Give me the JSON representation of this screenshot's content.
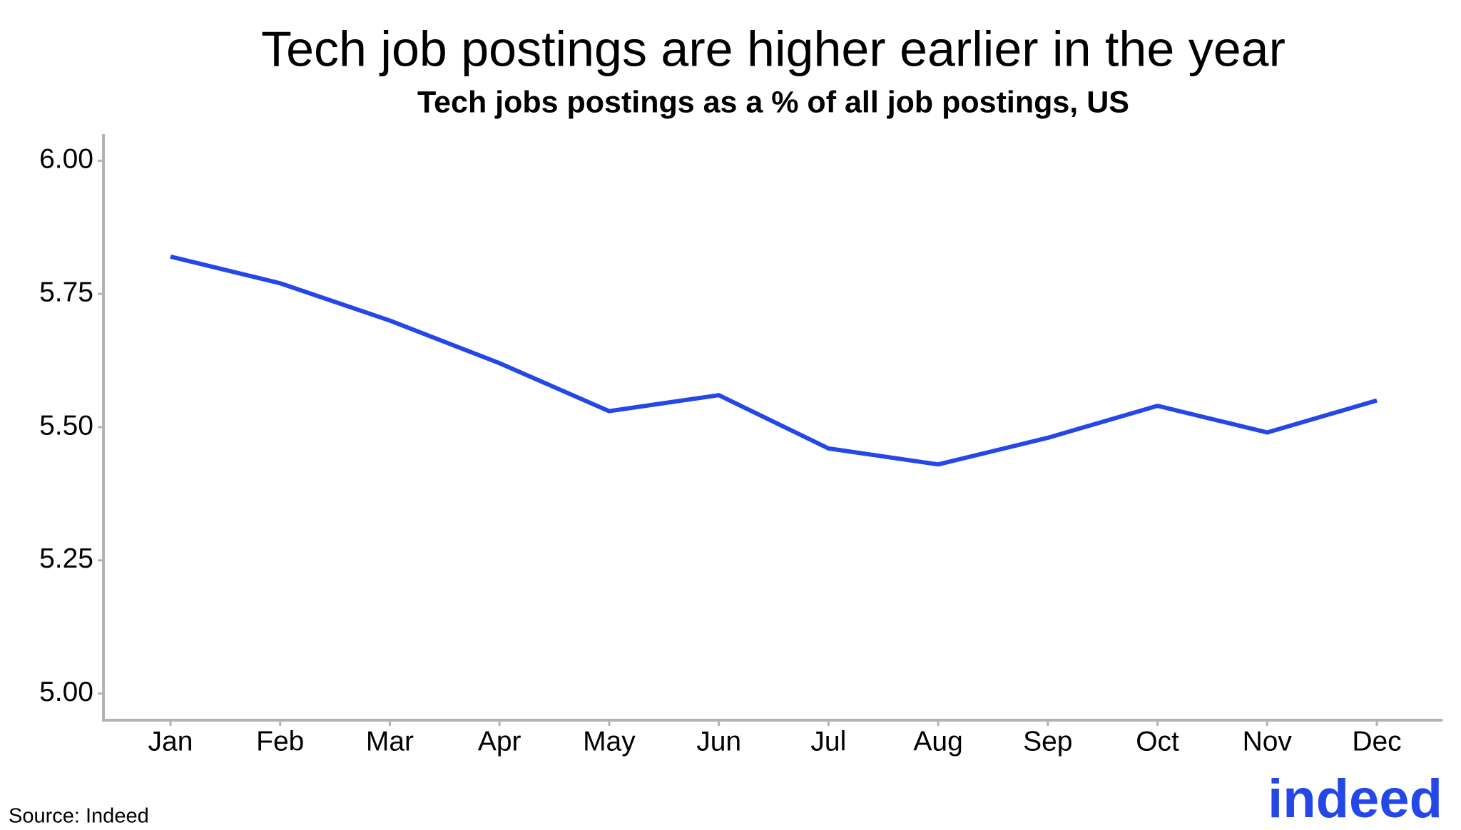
{
  "chart_data": {
    "type": "line",
    "title": "Tech job postings are higher earlier in the year",
    "subtitle": "Tech jobs postings as a % of all job postings, US",
    "source": "Source: Indeed",
    "logo": "indeed",
    "categories": [
      "Jan",
      "Feb",
      "Mar",
      "Apr",
      "May",
      "Jun",
      "Jul",
      "Aug",
      "Sep",
      "Oct",
      "Nov",
      "Dec"
    ],
    "values": [
      5.82,
      5.77,
      5.7,
      5.62,
      5.53,
      5.56,
      5.46,
      5.43,
      5.48,
      5.54,
      5.49,
      5.55
    ],
    "color": "#2447e8",
    "ylim": [
      4.95,
      6.05
    ],
    "yticks": [
      {
        "value": 5,
        "label": "5.00"
      },
      {
        "value": 5.25,
        "label": "5.25"
      },
      {
        "value": 5.5,
        "label": "5.50"
      },
      {
        "value": 5.75,
        "label": "5.75"
      },
      {
        "value": 6,
        "label": "6.00"
      }
    ],
    "grid": false
  }
}
